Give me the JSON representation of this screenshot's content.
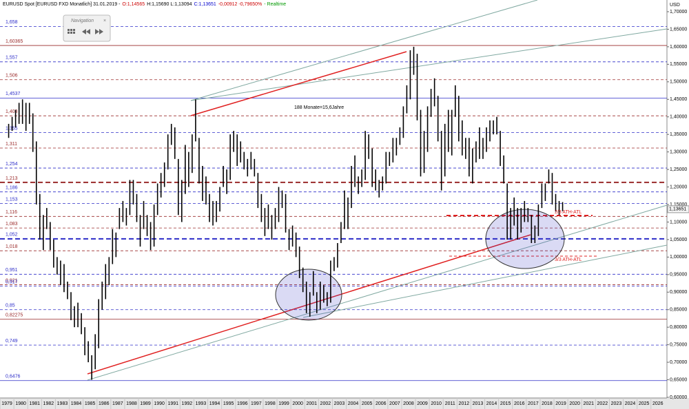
{
  "chart_data": {
    "type": "ohlc-range",
    "header": [
      {
        "text": "EURUSD Spot [EURUSD FXD Monatlich] 31.01.2019 -",
        "color": "#000000"
      },
      {
        "text": "O:1,14565",
        "color": "#cc0000"
      },
      {
        "text": "H:1,15690 L:1,13094",
        "color": "#000000"
      },
      {
        "text": "C:1,13651",
        "color": "#0000cc"
      },
      {
        "text": "-0,00912 -0,79650%",
        "color": "#cc0000"
      },
      {
        "text": "- Realtime",
        "color": "#009900"
      }
    ],
    "currency": "USD",
    "navigation": "Navigation",
    "color": "#000000",
    "xlim": [
      1978.5,
      2026.66
    ],
    "ylim": [
      0.6,
      1.7
    ],
    "xticks": [
      1979,
      1980,
      1981,
      1982,
      1983,
      1984,
      1985,
      1986,
      1987,
      1988,
      1989,
      1990,
      1991,
      1992,
      1993,
      1994,
      1995,
      1996,
      1997,
      1998,
      1999,
      2000,
      2001,
      2002,
      2003,
      2004,
      2005,
      2006,
      2007,
      2008,
      2009,
      2010,
      2011,
      2012,
      2013,
      2014,
      2015,
      2016,
      2017,
      2018,
      2019,
      2020,
      2021,
      2022,
      2023,
      2024,
      2025,
      2026
    ],
    "yticks": [
      {
        "value": 1.7,
        "label": "1,70000"
      },
      {
        "value": 1.65,
        "label": "1,65000"
      },
      {
        "value": 1.6,
        "label": "1,60000"
      },
      {
        "value": 1.55,
        "label": "1,55000"
      },
      {
        "value": 1.5,
        "label": "1,50000"
      },
      {
        "value": 1.45,
        "label": "1,45000"
      },
      {
        "value": 1.4,
        "label": "1,40000"
      },
      {
        "value": 1.35,
        "label": "1,35000"
      },
      {
        "value": 1.3,
        "label": "1,30000"
      },
      {
        "value": 1.25,
        "label": "1,25000"
      },
      {
        "value": 1.2,
        "label": "1,20000"
      },
      {
        "value": 1.15,
        "label": "1,15000"
      },
      {
        "value": 1.1,
        "label": "1,10000"
      },
      {
        "value": 1.05,
        "label": "1,05000"
      },
      {
        "value": 1.0,
        "label": "1,00000"
      },
      {
        "value": 0.95,
        "label": "0,95000"
      },
      {
        "value": 0.9,
        "label": "0,90000"
      },
      {
        "value": 0.85,
        "label": "0,85000"
      },
      {
        "value": 0.8,
        "label": "0,80000"
      },
      {
        "value": 0.75,
        "label": "0,75000"
      },
      {
        "value": 0.7,
        "label": "0,70000"
      },
      {
        "value": 0.65,
        "label": "0,65000"
      },
      {
        "value": 0.6,
        "label": "0,60000"
      }
    ],
    "last": {
      "value": 1.13651,
      "label": "1,13651"
    },
    "levels": [
      {
        "value": 1.658,
        "label": "1,658",
        "color": "#2b2bc8",
        "style": "dashed"
      },
      {
        "value": 1.60365,
        "label": "1,60365",
        "color": "#9a2a2a",
        "style": "solid"
      },
      {
        "value": 1.557,
        "label": "1,557",
        "color": "#2b2bc8",
        "style": "dashed"
      },
      {
        "value": 1.506,
        "label": "1,506",
        "color": "#9a2a2a",
        "style": "dashed"
      },
      {
        "value": 1.4537,
        "label": "1,4537",
        "color": "#2b2bc8",
        "style": "solid"
      },
      {
        "value": 1.403,
        "label": "1,403",
        "color": "#9a2a2a",
        "style": "dashed"
      },
      {
        "value": 1.355,
        "label": "1,355",
        "color": "#2b2bc8",
        "style": "dashed"
      },
      {
        "value": 1.311,
        "label": "1,311",
        "color": "#9a2a2a",
        "style": "dashed"
      },
      {
        "value": 1.254,
        "label": "1,254",
        "color": "#2b2bc8",
        "style": "dashed"
      },
      {
        "value": 1.213,
        "label": "1,213",
        "color": "#9a2a2a",
        "style": "thick"
      },
      {
        "value": 1.186,
        "label": "1,186",
        "color": "#2b2bc8",
        "style": "dashed"
      },
      {
        "value": 1.153,
        "label": "1,153",
        "color": "#2b2bc8",
        "style": "dashed"
      },
      {
        "value": 1.116,
        "label": "1,116",
        "color": "#9a2a2a",
        "style": "dashed"
      },
      {
        "value": 1.083,
        "label": "1,083",
        "color": "#9a2a2a",
        "style": "dashed"
      },
      {
        "value": 1.052,
        "label": "1,052",
        "color": "#2b2bc8",
        "style": "thick"
      },
      {
        "value": 1.018,
        "label": "1,018",
        "color": "#9a2a2a",
        "style": "dashed"
      },
      {
        "value": 0.951,
        "label": "0,951",
        "color": "#2b2bc8",
        "style": "dashed"
      },
      {
        "value": 0.921,
        "label": "0,921",
        "color": "#9a2a2a",
        "style": "dashed"
      },
      {
        "value": 0.917,
        "label": "0,917",
        "color": "#2b2bc8",
        "style": "dashed"
      },
      {
        "value": 0.85,
        "label": "0,85",
        "color": "#2b2bc8",
        "style": "dashed"
      },
      {
        "value": 0.82275,
        "label": "0,82275",
        "color": "#9a2a2a",
        "style": "solid"
      },
      {
        "value": 0.749,
        "label": "0,749",
        "color": "#2b2bc8",
        "style": "dashed"
      },
      {
        "value": 0.6476,
        "label": "0,6476",
        "color": "#2b2bc8",
        "style": "solid"
      }
    ],
    "annotations": [
      "188 Monate=15,6Jahre",
      "2/3 ATH-ATL",
      "3/3 ATH-ATL"
    ],
    "x": [
      1979,
      1979.25,
      1979.5,
      1979.75,
      1980,
      1980.25,
      1980.5,
      1980.75,
      1981,
      1981.25,
      1981.5,
      1981.75,
      1982,
      1982.25,
      1982.5,
      1982.75,
      1983,
      1983.25,
      1983.5,
      1983.75,
      1984,
      1984.25,
      1984.5,
      1984.75,
      1985,
      1985.25,
      1985.5,
      1985.75,
      1986,
      1986.25,
      1986.5,
      1986.75,
      1987,
      1987.25,
      1987.5,
      1987.75,
      1988,
      1988.25,
      1988.5,
      1988.75,
      1989,
      1989.25,
      1989.5,
      1989.75,
      1990,
      1990.25,
      1990.5,
      1990.75,
      1991,
      1991.25,
      1991.5,
      1991.75,
      1992,
      1992.25,
      1992.5,
      1992.75,
      1993,
      1993.25,
      1993.5,
      1993.75,
      1994,
      1994.25,
      1994.5,
      1994.75,
      1995,
      1995.25,
      1995.5,
      1995.75,
      1996,
      1996.25,
      1996.5,
      1996.75,
      1997,
      1997.25,
      1997.5,
      1997.75,
      1998,
      1998.25,
      1998.5,
      1998.75,
      1999,
      1999.25,
      1999.5,
      1999.75,
      2000,
      2000.25,
      2000.5,
      2000.75,
      2001,
      2001.25,
      2001.5,
      2001.75,
      2002,
      2002.25,
      2002.5,
      2002.75,
      2003,
      2003.25,
      2003.5,
      2003.75,
      2004,
      2004.25,
      2004.5,
      2004.75,
      2005,
      2005.25,
      2005.5,
      2005.75,
      2006,
      2006.25,
      2006.5,
      2006.75,
      2007,
      2007.25,
      2007.5,
      2007.75,
      2008,
      2008.25,
      2008.5,
      2008.75,
      2009,
      2009.25,
      2009.5,
      2009.75,
      2010,
      2010.25,
      2010.5,
      2010.75,
      2011,
      2011.25,
      2011.5,
      2011.75,
      2012,
      2012.25,
      2012.5,
      2012.75,
      2013,
      2013.25,
      2013.5,
      2013.75,
      2014,
      2014.25,
      2014.5,
      2014.75,
      2015,
      2015.25,
      2015.5,
      2015.75,
      2016,
      2016.25,
      2016.5,
      2016.75,
      2017,
      2017.25,
      2017.5,
      2017.75,
      2018,
      2018.25,
      2018.5,
      2018.75,
      2019
    ],
    "low": [
      1.34,
      1.36,
      1.37,
      1.38,
      1.38,
      1.36,
      1.38,
      1.3,
      1.15,
      1.05,
      1.02,
      1.08,
      1.02,
      0.97,
      0.95,
      0.92,
      0.9,
      0.88,
      0.82,
      0.8,
      0.8,
      0.78,
      0.72,
      0.7,
      0.65,
      0.68,
      0.74,
      0.85,
      0.88,
      0.92,
      0.98,
      1.0,
      1.08,
      1.1,
      1.09,
      1.12,
      1.15,
      1.1,
      1.03,
      1.08,
      1.06,
      1.02,
      1.03,
      1.12,
      1.17,
      1.2,
      1.25,
      1.32,
      1.28,
      1.12,
      1.1,
      1.18,
      1.2,
      1.24,
      1.33,
      1.21,
      1.16,
      1.15,
      1.1,
      1.09,
      1.1,
      1.13,
      1.2,
      1.18,
      1.22,
      1.3,
      1.26,
      1.27,
      1.25,
      1.23,
      1.25,
      1.23,
      1.14,
      1.1,
      1.06,
      1.08,
      1.05,
      1.08,
      1.1,
      1.14,
      1.07,
      1.02,
      1.03,
      1.0,
      0.94,
      0.9,
      0.84,
      0.83,
      0.89,
      0.84,
      0.85,
      0.87,
      0.86,
      0.87,
      0.96,
      0.97,
      1.04,
      1.08,
      1.08,
      1.14,
      1.2,
      1.18,
      1.2,
      1.22,
      1.28,
      1.2,
      1.19,
      1.17,
      1.19,
      1.21,
      1.26,
      1.27,
      1.29,
      1.32,
      1.34,
      1.41,
      1.45,
      1.52,
      1.39,
      1.23,
      1.24,
      1.3,
      1.4,
      1.43,
      1.33,
      1.19,
      1.23,
      1.3,
      1.29,
      1.4,
      1.33,
      1.29,
      1.28,
      1.23,
      1.21,
      1.27,
      1.28,
      1.28,
      1.3,
      1.33,
      1.35,
      1.35,
      1.26,
      1.21,
      1.05,
      1.05,
      1.09,
      1.05,
      1.07,
      1.1,
      1.1,
      1.04,
      1.04,
      1.06,
      1.14,
      1.16,
      1.21,
      1.15,
      1.13,
      1.12,
      1.13094
    ],
    "high": [
      1.38,
      1.4,
      1.42,
      1.44,
      1.45,
      1.44,
      1.44,
      1.41,
      1.33,
      1.18,
      1.12,
      1.14,
      1.1,
      1.05,
      1.0,
      0.99,
      0.98,
      0.93,
      0.9,
      0.86,
      0.87,
      0.84,
      0.8,
      0.76,
      0.72,
      0.78,
      0.88,
      0.93,
      0.98,
      1.0,
      1.08,
      1.07,
      1.14,
      1.16,
      1.14,
      1.22,
      1.22,
      1.18,
      1.12,
      1.16,
      1.12,
      1.1,
      1.15,
      1.21,
      1.24,
      1.27,
      1.35,
      1.38,
      1.37,
      1.28,
      1.22,
      1.32,
      1.3,
      1.35,
      1.45,
      1.34,
      1.26,
      1.23,
      1.18,
      1.16,
      1.16,
      1.2,
      1.26,
      1.25,
      1.35,
      1.36,
      1.35,
      1.33,
      1.3,
      1.28,
      1.3,
      1.28,
      1.24,
      1.18,
      1.14,
      1.15,
      1.12,
      1.14,
      1.2,
      1.19,
      1.18,
      1.08,
      1.09,
      1.07,
      1.03,
      0.97,
      0.93,
      0.9,
      0.96,
      0.9,
      0.93,
      0.92,
      0.9,
      0.99,
      1.0,
      1.04,
      1.1,
      1.19,
      1.17,
      1.26,
      1.29,
      1.23,
      1.25,
      1.36,
      1.35,
      1.31,
      1.25,
      1.22,
      1.23,
      1.3,
      1.3,
      1.34,
      1.34,
      1.37,
      1.43,
      1.49,
      1.59,
      1.6,
      1.58,
      1.42,
      1.36,
      1.43,
      1.48,
      1.51,
      1.46,
      1.36,
      1.38,
      1.42,
      1.42,
      1.49,
      1.46,
      1.39,
      1.34,
      1.34,
      1.31,
      1.33,
      1.37,
      1.34,
      1.37,
      1.39,
      1.39,
      1.4,
      1.36,
      1.29,
      1.21,
      1.14,
      1.17,
      1.14,
      1.14,
      1.16,
      1.14,
      1.12,
      1.09,
      1.15,
      1.21,
      1.21,
      1.25,
      1.24,
      1.18,
      1.16,
      1.1569
    ]
  }
}
